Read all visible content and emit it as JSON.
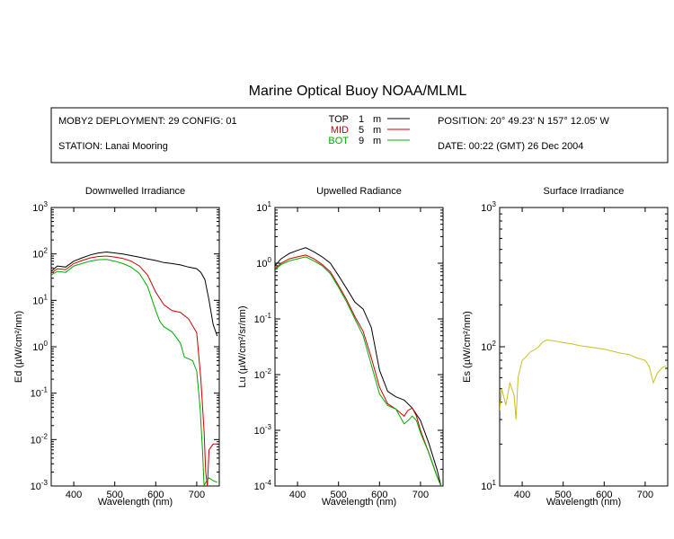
{
  "header": {
    "title": "Marine Optical Buoy NOAA/MLML",
    "deployment": "MOBY2 DEPLOYMENT: 29 CONFIG: 01",
    "station": "STATION: Lanai Mooring",
    "position": "POSITION: 20° 49.23' N   157° 12.05' W",
    "date": "DATE: 00:22 (GMT) 26 Dec 2004",
    "legend": [
      {
        "name": "TOP",
        "depth": "1",
        "unit": "m",
        "color": "#000000"
      },
      {
        "name": "MID",
        "depth": "5",
        "unit": "m",
        "color": "#cc0000"
      },
      {
        "name": "BOT",
        "depth": "9",
        "unit": "m",
        "color": "#00aa00"
      }
    ]
  },
  "chart_data": [
    {
      "type": "line",
      "title": "Downwelled Irradiance",
      "xlabel": "Wavelength (nm)",
      "ylabel": "Ed  (µW/cm²/nm)",
      "xlim": [
        345,
        755
      ],
      "ylim": [
        0.001,
        1000
      ],
      "yscale": "log",
      "xticks": [
        400,
        500,
        600,
        700
      ],
      "yticks": [
        {
          "v": 0.001,
          "base": "10",
          "exp": "-3"
        },
        {
          "v": 0.01,
          "base": "10",
          "exp": "-2"
        },
        {
          "v": 0.1,
          "base": "10",
          "exp": "-1"
        },
        {
          "v": 1,
          "base": "10",
          "exp": "0"
        },
        {
          "v": 10,
          "base": "10",
          "exp": "1"
        },
        {
          "v": 100,
          "base": "10",
          "exp": "2"
        },
        {
          "v": 1000,
          "base": "10",
          "exp": "3"
        }
      ],
      "series": [
        {
          "name": "TOP",
          "color": "#000000",
          "x": [
            345,
            360,
            380,
            400,
            420,
            440,
            460,
            480,
            500,
            520,
            540,
            560,
            580,
            600,
            620,
            640,
            660,
            680,
            700,
            710,
            720,
            730,
            740,
            750
          ],
          "y": [
            42,
            55,
            52,
            70,
            82,
            95,
            105,
            110,
            105,
            100,
            92,
            85,
            78,
            72,
            65,
            62,
            58,
            52,
            48,
            40,
            28,
            10,
            3,
            1.7
          ]
        },
        {
          "name": "MID",
          "color": "#cc0000",
          "x": [
            345,
            360,
            380,
            400,
            420,
            440,
            460,
            480,
            500,
            520,
            540,
            560,
            580,
            600,
            620,
            640,
            660,
            680,
            700,
            710,
            718,
            722,
            726,
            730,
            740,
            750
          ],
          "y": [
            38,
            48,
            46,
            62,
            72,
            82,
            88,
            90,
            86,
            80,
            70,
            55,
            35,
            15,
            8,
            6,
            5.5,
            4,
            2,
            0.2,
            0.015,
            0.002,
            0.001,
            0.006,
            0.008,
            0.008
          ]
        },
        {
          "name": "BOT",
          "color": "#00aa00",
          "x": [
            345,
            360,
            380,
            400,
            420,
            440,
            460,
            480,
            500,
            520,
            540,
            560,
            580,
            600,
            610,
            620,
            640,
            660,
            670,
            680,
            690,
            700,
            708,
            714,
            718,
            722,
            730,
            740,
            750
          ],
          "y": [
            35,
            42,
            40,
            55,
            62,
            70,
            75,
            76,
            70,
            62,
            52,
            38,
            20,
            6,
            3.5,
            2.7,
            2.1,
            1.2,
            0.6,
            0.55,
            0.5,
            0.3,
            0.05,
            0.006,
            0.001,
            0.0012,
            0.0015,
            0.0013,
            0.0012
          ]
        }
      ]
    },
    {
      "type": "line",
      "title": "Upwelled Radiance",
      "xlabel": "Wavelength (nm)",
      "ylabel": "Lu  (µW/cm²/sr/nm)",
      "xlim": [
        345,
        755
      ],
      "ylim": [
        0.0001,
        10
      ],
      "yscale": "log",
      "xticks": [
        400,
        500,
        600,
        700
      ],
      "yticks": [
        {
          "v": 0.0001,
          "base": "10",
          "exp": "-4"
        },
        {
          "v": 0.001,
          "base": "10",
          "exp": "-3"
        },
        {
          "v": 0.01,
          "base": "10",
          "exp": "-2"
        },
        {
          "v": 0.1,
          "base": "10",
          "exp": "-1"
        },
        {
          "v": 1,
          "base": "10",
          "exp": "0"
        },
        {
          "v": 10,
          "base": "10",
          "exp": "1"
        }
      ],
      "series": [
        {
          "name": "TOP",
          "color": "#000000",
          "x": [
            345,
            360,
            380,
            400,
            420,
            440,
            460,
            480,
            500,
            520,
            540,
            560,
            580,
            600,
            620,
            640,
            660,
            680,
            700,
            720,
            740,
            750
          ],
          "y": [
            0.9,
            1.2,
            1.5,
            1.7,
            1.9,
            1.6,
            1.3,
            1.0,
            0.6,
            0.35,
            0.2,
            0.15,
            0.07,
            0.012,
            0.005,
            0.004,
            0.0035,
            0.0025,
            0.0015,
            0.0006,
            0.0002,
            0.0001
          ]
        },
        {
          "name": "MID",
          "color": "#cc0000",
          "x": [
            345,
            360,
            380,
            400,
            420,
            440,
            460,
            480,
            500,
            520,
            540,
            560,
            580,
            600,
            620,
            640,
            660,
            670,
            680,
            690,
            700,
            720,
            740,
            750
          ],
          "y": [
            0.8,
            1.0,
            1.2,
            1.3,
            1.4,
            1.2,
            0.95,
            0.7,
            0.4,
            0.22,
            0.11,
            0.06,
            0.02,
            0.006,
            0.003,
            0.0024,
            0.0018,
            0.0023,
            0.0025,
            0.0018,
            0.001,
            0.0004,
            0.00015,
            0.0001
          ]
        },
        {
          "name": "BOT",
          "color": "#00aa00",
          "x": [
            345,
            360,
            380,
            400,
            420,
            440,
            460,
            480,
            500,
            520,
            540,
            560,
            580,
            600,
            620,
            640,
            660,
            670,
            680,
            690,
            700,
            720,
            740,
            750
          ],
          "y": [
            0.75,
            0.95,
            1.1,
            1.2,
            1.3,
            1.1,
            0.9,
            0.65,
            0.37,
            0.2,
            0.1,
            0.05,
            0.015,
            0.0045,
            0.0028,
            0.0024,
            0.0013,
            0.0015,
            0.0018,
            0.0015,
            0.0009,
            0.0004,
            0.00015,
            0.0001
          ]
        }
      ]
    },
    {
      "type": "line",
      "title": "Surface Irradiance",
      "xlabel": "Wavelength (nm)",
      "ylabel": "Es  (µW/cm²/nm)",
      "xlim": [
        345,
        755
      ],
      "ylim": [
        10,
        1000
      ],
      "yscale": "log",
      "xticks": [
        400,
        500,
        600,
        700
      ],
      "yticks": [
        {
          "v": 10,
          "base": "10",
          "exp": "1"
        },
        {
          "v": 100,
          "base": "10",
          "exp": "2"
        },
        {
          "v": 1000,
          "base": "10",
          "exp": "3"
        }
      ],
      "series": [
        {
          "name": "",
          "color": "#c8c020",
          "x": [
            345,
            350,
            360,
            370,
            380,
            385,
            390,
            400,
            410,
            420,
            430,
            440,
            450,
            460,
            480,
            500,
            520,
            540,
            560,
            580,
            600,
            620,
            640,
            660,
            680,
            700,
            710,
            720,
            730,
            740,
            750
          ],
          "y": [
            35,
            50,
            38,
            55,
            45,
            30,
            60,
            80,
            85,
            92,
            95,
            100,
            108,
            112,
            110,
            107,
            105,
            102,
            100,
            98,
            96,
            93,
            90,
            88,
            83,
            80,
            72,
            55,
            65,
            70,
            73
          ]
        }
      ]
    }
  ]
}
